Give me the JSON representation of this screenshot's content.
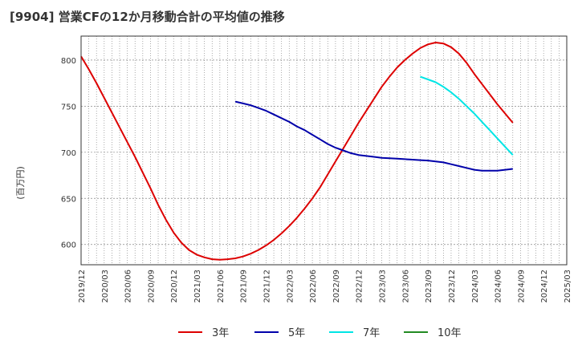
{
  "chart_data": {
    "type": "line",
    "title": "[9904]  営業CFの12か月移動合計の平均値の推移",
    "ylabel": "(百万円)",
    "xlabel": "",
    "ylim": [
      578,
      826
    ],
    "yticks": [
      600,
      650,
      700,
      750,
      800
    ],
    "x_ticks": [
      "2019/12",
      "2020/03",
      "2020/06",
      "2020/09",
      "2020/12",
      "2021/03",
      "2021/06",
      "2021/09",
      "2021/12",
      "2022/03",
      "2022/06",
      "2022/09",
      "2022/12",
      "2023/03",
      "2023/06",
      "2023/09",
      "2023/12",
      "2024/03",
      "2024/06",
      "2024/09",
      "2024/12",
      "2025/03"
    ],
    "grid": true,
    "legend_position": "bottom",
    "series": [
      {
        "name": "3年",
        "color": "#dd0000",
        "points": [
          [
            "2019/12",
            804
          ],
          [
            "2020/01",
            790
          ],
          [
            "2020/02",
            775
          ],
          [
            "2020/03",
            759
          ],
          [
            "2020/04",
            743
          ],
          [
            "2020/05",
            727
          ],
          [
            "2020/06",
            711
          ],
          [
            "2020/07",
            695
          ],
          [
            "2020/08",
            678
          ],
          [
            "2020/09",
            661
          ],
          [
            "2020/10",
            643
          ],
          [
            "2020/11",
            627
          ],
          [
            "2020/12",
            613
          ],
          [
            "2021/01",
            602
          ],
          [
            "2021/02",
            594
          ],
          [
            "2021/03",
            589
          ],
          [
            "2021/04",
            586
          ],
          [
            "2021/05",
            584
          ],
          [
            "2021/06",
            583.5
          ],
          [
            "2021/07",
            584
          ],
          [
            "2021/08",
            585
          ],
          [
            "2021/09",
            587
          ],
          [
            "2021/10",
            590
          ],
          [
            "2021/11",
            594
          ],
          [
            "2021/12",
            599
          ],
          [
            "2022/01",
            605
          ],
          [
            "2022/02",
            612
          ],
          [
            "2022/03",
            620
          ],
          [
            "2022/04",
            629
          ],
          [
            "2022/05",
            639
          ],
          [
            "2022/06",
            650
          ],
          [
            "2022/07",
            662
          ],
          [
            "2022/08",
            676
          ],
          [
            "2022/09",
            690
          ],
          [
            "2022/10",
            704
          ],
          [
            "2022/11",
            718
          ],
          [
            "2022/12",
            732
          ],
          [
            "2023/01",
            745
          ],
          [
            "2023/02",
            758
          ],
          [
            "2023/03",
            771
          ],
          [
            "2023/04",
            782
          ],
          [
            "2023/05",
            792
          ],
          [
            "2023/06",
            800
          ],
          [
            "2023/07",
            807
          ],
          [
            "2023/08",
            813
          ],
          [
            "2023/09",
            817
          ],
          [
            "2023/10",
            819
          ],
          [
            "2023/11",
            818
          ],
          [
            "2023/12",
            814
          ],
          [
            "2024/01",
            807
          ],
          [
            "2024/02",
            797
          ],
          [
            "2024/03",
            785
          ],
          [
            "2024/04",
            774
          ],
          [
            "2024/05",
            763
          ],
          [
            "2024/06",
            752
          ],
          [
            "2024/07",
            742
          ],
          [
            "2024/08",
            732
          ]
        ]
      },
      {
        "name": "5年",
        "color": "#0000aa",
        "points": [
          [
            "2021/08",
            755
          ],
          [
            "2021/09",
            753
          ],
          [
            "2021/10",
            751
          ],
          [
            "2021/11",
            748
          ],
          [
            "2021/12",
            745
          ],
          [
            "2022/01",
            741
          ],
          [
            "2022/02",
            737
          ],
          [
            "2022/03",
            733
          ],
          [
            "2022/04",
            728
          ],
          [
            "2022/05",
            724
          ],
          [
            "2022/06",
            719
          ],
          [
            "2022/07",
            714
          ],
          [
            "2022/08",
            709
          ],
          [
            "2022/09",
            705
          ],
          [
            "2022/10",
            702
          ],
          [
            "2022/11",
            699
          ],
          [
            "2022/12",
            697
          ],
          [
            "2023/01",
            696
          ],
          [
            "2023/02",
            695
          ],
          [
            "2023/03",
            694
          ],
          [
            "2023/04",
            693.5
          ],
          [
            "2023/05",
            693
          ],
          [
            "2023/06",
            692.5
          ],
          [
            "2023/07",
            692
          ],
          [
            "2023/08",
            691.5
          ],
          [
            "2023/09",
            691
          ],
          [
            "2023/10",
            690
          ],
          [
            "2023/11",
            689
          ],
          [
            "2023/12",
            687
          ],
          [
            "2024/01",
            685
          ],
          [
            "2024/02",
            683
          ],
          [
            "2024/03",
            681
          ],
          [
            "2024/04",
            680
          ],
          [
            "2024/05",
            680
          ],
          [
            "2024/06",
            680
          ],
          [
            "2024/07",
            681
          ],
          [
            "2024/08",
            682
          ]
        ]
      },
      {
        "name": "7年",
        "color": "#00e5e5",
        "points": [
          [
            "2023/08",
            782
          ],
          [
            "2023/09",
            779
          ],
          [
            "2023/10",
            776
          ],
          [
            "2023/11",
            771
          ],
          [
            "2023/12",
            765
          ],
          [
            "2024/01",
            758
          ],
          [
            "2024/02",
            750
          ],
          [
            "2024/03",
            742
          ],
          [
            "2024/04",
            733
          ],
          [
            "2024/05",
            724
          ],
          [
            "2024/06",
            715
          ],
          [
            "2024/07",
            706
          ],
          [
            "2024/08",
            697
          ]
        ]
      },
      {
        "name": "10年",
        "color": "#228b22",
        "points": []
      }
    ]
  }
}
